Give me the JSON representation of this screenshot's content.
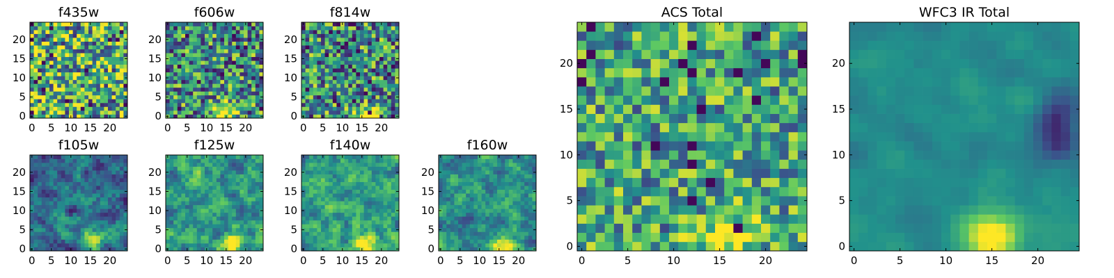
{
  "colormap": {
    "name": "viridis",
    "stops": [
      "#440154",
      "#3b528b",
      "#21918c",
      "#5ec962",
      "#fde725"
    ]
  },
  "chart_data": [
    {
      "type": "heatmap",
      "title": "f435w",
      "grid_size": 25,
      "xlim": [
        0,
        24
      ],
      "ylim": [
        0,
        24
      ],
      "xticks": [
        0,
        5,
        10,
        15,
        20
      ],
      "yticks": [
        0,
        5,
        10,
        15,
        20
      ],
      "bright_spot": null,
      "bright_spot_strength": 0.0,
      "noise_level": 0.62,
      "base_level": 0.62,
      "smoothing": 0,
      "dark_region": null
    },
    {
      "type": "heatmap",
      "title": "f606w",
      "grid_size": 25,
      "xlim": [
        0,
        24
      ],
      "ylim": [
        0,
        24
      ],
      "xticks": [
        0,
        5,
        10,
        15,
        20
      ],
      "yticks": [
        0,
        5,
        10,
        15,
        20
      ],
      "bright_spot": [
        15,
        1
      ],
      "bright_spot_strength": 0.6,
      "noise_level": 0.55,
      "base_level": 0.5,
      "smoothing": 0,
      "dark_region": null
    },
    {
      "type": "heatmap",
      "title": "f814w",
      "grid_size": 25,
      "xlim": [
        0,
        24
      ],
      "ylim": [
        0,
        24
      ],
      "xticks": [
        0,
        5,
        10,
        15,
        20
      ],
      "yticks": [
        0,
        5,
        10,
        15,
        20
      ],
      "bright_spot": [
        16,
        0
      ],
      "bright_spot_strength": 0.7,
      "noise_level": 0.55,
      "base_level": 0.5,
      "smoothing": 0,
      "dark_region": null
    },
    {
      "type": "heatmap",
      "title": "f105w",
      "grid_size": 25,
      "xlim": [
        0,
        24
      ],
      "ylim": [
        0,
        24
      ],
      "xticks": [
        0,
        5,
        10,
        15,
        20
      ],
      "yticks": [
        0,
        5,
        10,
        15,
        20
      ],
      "bright_spot": [
        15,
        2
      ],
      "bright_spot_strength": 0.65,
      "noise_level": 0.35,
      "base_level": 0.35,
      "smoothing": 1,
      "dark_region": null
    },
    {
      "type": "heatmap",
      "title": "f125w",
      "grid_size": 25,
      "xlim": [
        0,
        24
      ],
      "ylim": [
        0,
        24
      ],
      "xticks": [
        0,
        5,
        10,
        15,
        20
      ],
      "yticks": [
        0,
        5,
        10,
        15,
        20
      ],
      "bright_spot": [
        16,
        1
      ],
      "bright_spot_strength": 0.55,
      "noise_level": 0.4,
      "base_level": 0.55,
      "smoothing": 1,
      "dark_region": null
    },
    {
      "type": "heatmap",
      "title": "f140w",
      "grid_size": 25,
      "xlim": [
        0,
        24
      ],
      "ylim": [
        0,
        24
      ],
      "xticks": [
        0,
        5,
        10,
        15,
        20
      ],
      "yticks": [
        0,
        5,
        10,
        15,
        20
      ],
      "bright_spot": [
        16,
        1
      ],
      "bright_spot_strength": 0.55,
      "noise_level": 0.35,
      "base_level": 0.55,
      "smoothing": 1,
      "dark_region": null
    },
    {
      "type": "heatmap",
      "title": "f160w",
      "grid_size": 25,
      "xlim": [
        0,
        24
      ],
      "ylim": [
        0,
        24
      ],
      "xticks": [
        0,
        5,
        10,
        15,
        20
      ],
      "yticks": [
        0,
        5,
        10,
        15,
        20
      ],
      "bright_spot": [
        16,
        1
      ],
      "bright_spot_strength": 0.5,
      "noise_level": 0.35,
      "base_level": 0.5,
      "smoothing": 1,
      "dark_region": null
    },
    {
      "type": "heatmap",
      "title": "ACS Total",
      "grid_size": 25,
      "xlim": [
        0,
        24
      ],
      "ylim": [
        0,
        24
      ],
      "xticks": [
        0,
        5,
        10,
        15,
        20
      ],
      "yticks": [
        0,
        5,
        10,
        15,
        20
      ],
      "bright_spot": [
        16,
        1
      ],
      "bright_spot_strength": 0.55,
      "noise_level": 0.45,
      "base_level": 0.58,
      "smoothing": 0,
      "dark_region": null
    },
    {
      "type": "heatmap",
      "title": "WFC3 IR Total",
      "grid_size": 25,
      "xlim": [
        0,
        24
      ],
      "ylim": [
        0,
        24
      ],
      "xticks": [
        0,
        5,
        10,
        15,
        20
      ],
      "yticks": [
        0,
        5,
        10,
        15,
        20
      ],
      "bright_spot": [
        15,
        1
      ],
      "bright_spot_strength": 0.6,
      "noise_level": 0.12,
      "base_level": 0.48,
      "smoothing": 2,
      "dark_region": [
        22,
        13
      ]
    }
  ]
}
